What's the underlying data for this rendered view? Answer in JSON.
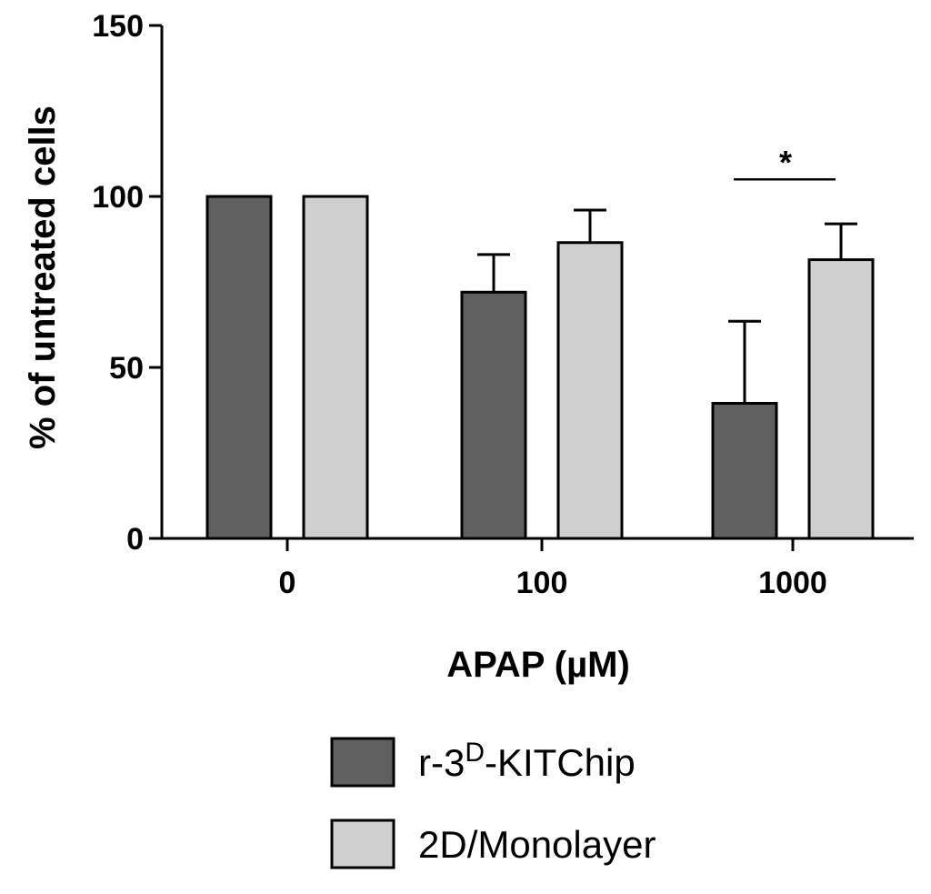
{
  "chart_data": {
    "type": "bar",
    "categories": [
      "0",
      "100",
      "1000"
    ],
    "series": [
      {
        "name": "r-3D-KITChip",
        "values": [
          100,
          72,
          39.5
        ],
        "errors": [
          0,
          11,
          24
        ],
        "color": "#5f5f5f"
      },
      {
        "name": "2D/Monolayer",
        "values": [
          100,
          86.5,
          81.5
        ],
        "errors": [
          0,
          9.5,
          10.5
        ],
        "color": "#cfcfcf"
      }
    ],
    "xlabel": "APAP (µM)",
    "ylabel": "% of untreated cells",
    "ylim": [
      0,
      150
    ],
    "yticks": [
      0,
      50,
      100,
      150
    ],
    "grid": false,
    "legend": {
      "placement": "bottom",
      "entries": [
        {
          "prefix": "r-3",
          "superscript": "D",
          "suffix": "-KITChip"
        },
        {
          "text": "2D/Monolayer"
        }
      ]
    },
    "annotations": [
      {
        "text": "*",
        "category": "1000",
        "y": 105
      }
    ]
  }
}
